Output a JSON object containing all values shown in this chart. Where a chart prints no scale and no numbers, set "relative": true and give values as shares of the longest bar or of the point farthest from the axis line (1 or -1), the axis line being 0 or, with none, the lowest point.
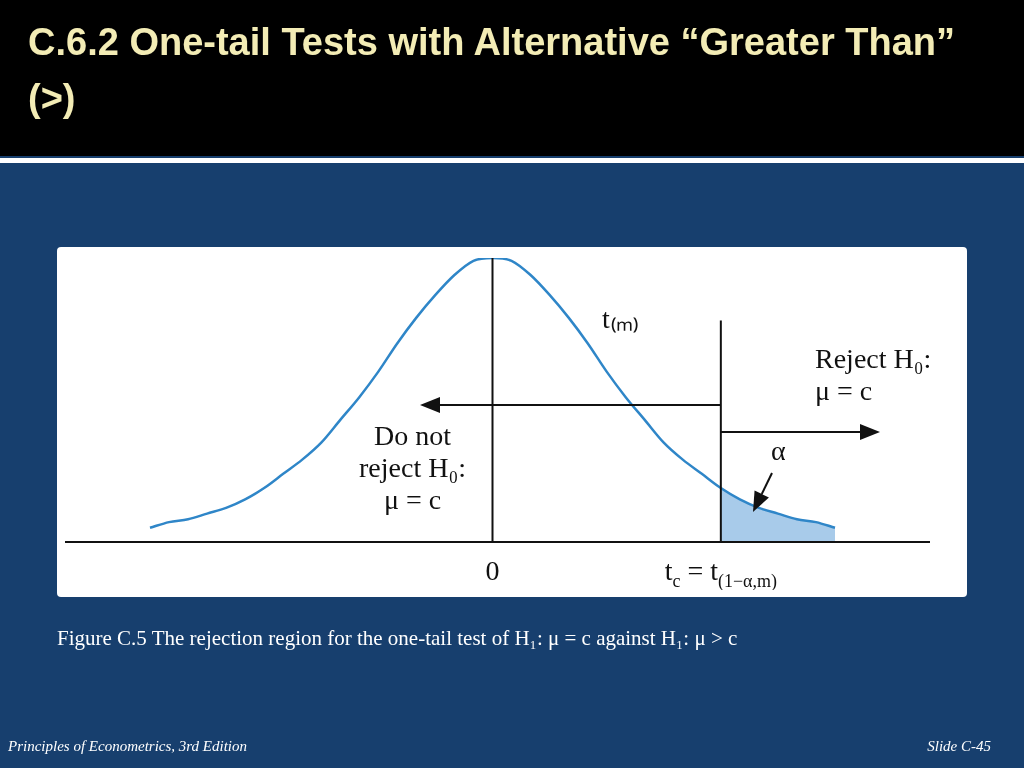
{
  "chart_data": {
    "type": "line",
    "title": "C.6.2 One-tail Tests with Alternative “Greater Than” (>)",
    "relative": true,
    "grid": false,
    "legend": false,
    "marker": "none",
    "categories": [
      null,
      null,
      null,
      null,
      null,
      null,
      null,
      null,
      null,
      null,
      null,
      null,
      null,
      null,
      null,
      null,
      null,
      null,
      "0",
      null,
      null,
      null,
      null,
      null,
      null,
      null,
      null,
      null,
      null,
      null,
      "t$_{c}$ = t$_{(1−α,m)}$",
      null,
      null,
      null,
      null,
      null,
      null
    ],
    "series": [
      {
        "color": "#2f86c8",
        "values": [
          0.05,
          0.07,
          0.08,
          0.1,
          0.12,
          0.15,
          0.19,
          0.24,
          0.29,
          0.35,
          0.43,
          0.51,
          0.6,
          0.7,
          0.79,
          0.87,
          0.94,
          0.99,
          1,
          0.99,
          0.94,
          0.87,
          0.79,
          0.7,
          0.6,
          0.51,
          0.43,
          0.35,
          0.29,
          0.24,
          0.19,
          0.15,
          0.12,
          0.1,
          0.08,
          0.07,
          0.05
        ]
      },
      {
        "type": "area",
        "color": "#a8cbea",
        "values": [
          null,
          null,
          null,
          null,
          null,
          null,
          null,
          null,
          null,
          null,
          null,
          null,
          null,
          null,
          null,
          null,
          null,
          null,
          null,
          null,
          null,
          null,
          null,
          null,
          null,
          null,
          null,
          null,
          null,
          null,
          0.19,
          0.15,
          0.12,
          0.1,
          0.08,
          0.07,
          0.05
        ]
      }
    ],
    "ref_lines": [
      {
        "axis": "x",
        "value": "0",
        "color": "#111111"
      },
      {
        "axis": "x",
        "value": "t$_{c}$ = t$_{(1−α,m)}$",
        "color": "#111111"
      }
    ],
    "annotations": [
      "t₍ₘ₎",
      "Reject H₀: μ = c",
      "Do not reject H₀: μ = c",
      "α",
      "Figure C.5 The rejection region for the one-tail test of H₁: μ = c against H₁: μ > c",
      "Principles of Econometrics, 3rd Edition",
      "Slide C-45"
    ]
  }
}
